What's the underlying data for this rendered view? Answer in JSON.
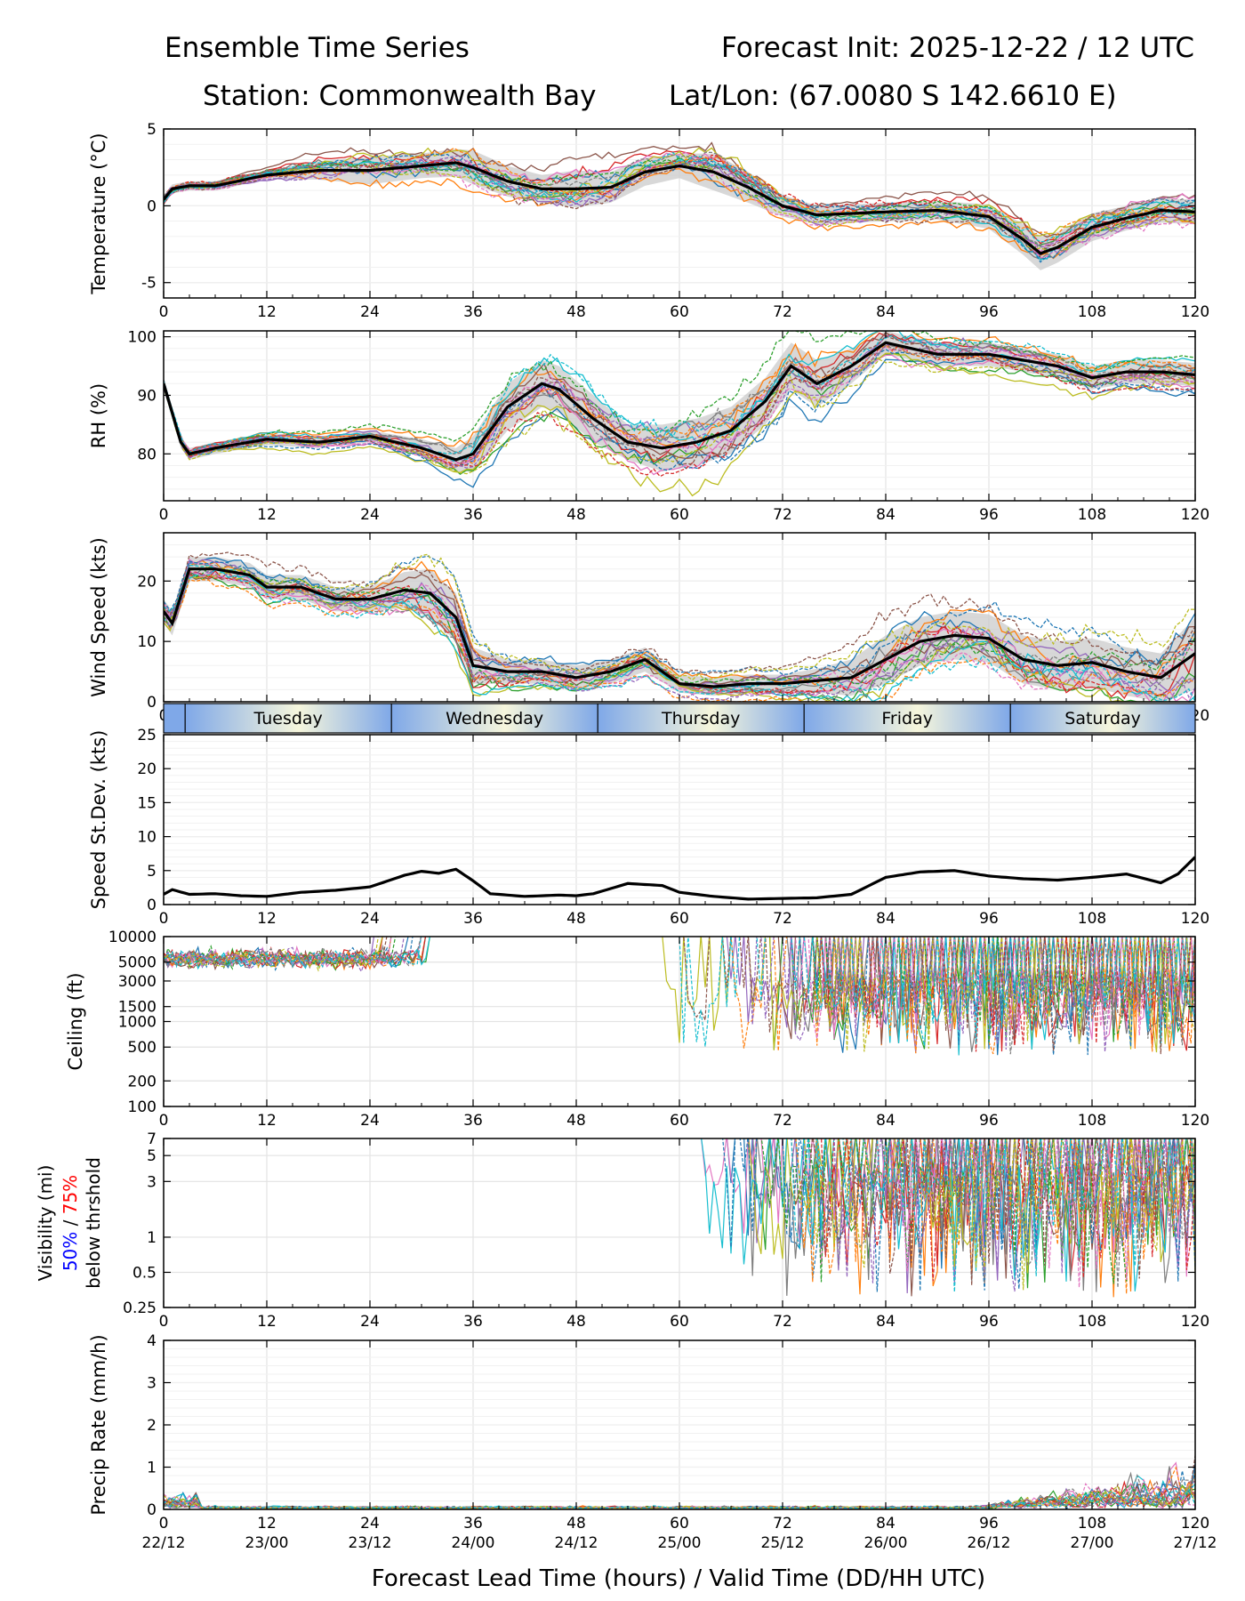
{
  "header": {
    "title_left": "Ensemble Time Series",
    "title_right": "Forecast Init: 2025-12-22 / 12 UTC",
    "station": "Station: Commonwealth Bay",
    "latlon": "Lat/Lon: (67.0080 S 142.6610 E)"
  },
  "colors": {
    "ensemble": [
      "#1f77b4",
      "#ff7f0e",
      "#2ca02c",
      "#d62728",
      "#9467bd",
      "#8c564b",
      "#e377c2",
      "#7f7f7f",
      "#bcbd22",
      "#17becf"
    ],
    "mean": "#000000",
    "spread_fill": "#c8c8c8",
    "day_band_start": "#7fa8e8",
    "day_band_end": "#f6f6dc",
    "threshold_50": "#0000ff",
    "threshold_75": "#ff0000"
  },
  "x_axis": {
    "label": "Forecast Lead Time (hours) / Valid Time (DD/HH UTC)",
    "range": [
      0,
      120
    ],
    "ticks": [
      0,
      12,
      24,
      36,
      48,
      60,
      72,
      84,
      96,
      108,
      120
    ],
    "valid_time_labels": [
      "22/12",
      "23/00",
      "23/12",
      "24/00",
      "24/12",
      "25/00",
      "25/12",
      "26/00",
      "26/12",
      "27/00",
      "27/12"
    ]
  },
  "day_band": {
    "days": [
      {
        "name": "Tuesday",
        "start": 2.5,
        "end": 26.5
      },
      {
        "name": "Wednesday",
        "start": 26.5,
        "end": 50.5
      },
      {
        "name": "Thursday",
        "start": 50.5,
        "end": 74.5
      },
      {
        "name": "Friday",
        "start": 74.5,
        "end": 98.5
      },
      {
        "name": "Saturday",
        "start": 98.5,
        "end": 122.5
      }
    ]
  },
  "chart_data": [
    {
      "type": "line",
      "id": "temperature",
      "ylabel": "Temperature (°C)",
      "ylim": [
        -6,
        5
      ],
      "yticks": [
        -5,
        0,
        5
      ],
      "scale": "linear",
      "mean": [
        [
          0,
          0.4
        ],
        [
          1,
          1.1
        ],
        [
          3,
          1.3
        ],
        [
          6,
          1.3
        ],
        [
          12,
          2.0
        ],
        [
          18,
          2.3
        ],
        [
          24,
          2.3
        ],
        [
          30,
          2.6
        ],
        [
          34,
          2.8
        ],
        [
          36,
          2.5
        ],
        [
          40,
          1.6
        ],
        [
          44,
          1.1
        ],
        [
          48,
          1.1
        ],
        [
          52,
          1.2
        ],
        [
          56,
          2.2
        ],
        [
          60,
          2.6
        ],
        [
          64,
          2.2
        ],
        [
          68,
          1.2
        ],
        [
          72,
          0.0
        ],
        [
          76,
          -0.6
        ],
        [
          80,
          -0.5
        ],
        [
          84,
          -0.4
        ],
        [
          90,
          -0.3
        ],
        [
          96,
          -0.7
        ],
        [
          100,
          -2.2
        ],
        [
          102,
          -3.1
        ],
        [
          104,
          -2.7
        ],
        [
          108,
          -1.4
        ],
        [
          112,
          -0.8
        ],
        [
          116,
          -0.3
        ],
        [
          120,
          -0.4
        ]
      ],
      "spread": [
        0.3,
        0.3,
        0.3,
        0.3,
        0.3,
        0.6,
        0.9,
        0.8,
        0.9,
        1.1,
        1.0,
        0.9,
        1.2,
        1.0,
        0.9,
        0.8,
        1.2,
        1.0,
        0.7,
        0.6,
        0.6,
        0.6,
        0.6,
        0.8,
        1.0,
        1.1,
        1.0,
        0.9,
        0.8,
        0.8,
        0.8
      ],
      "members": 20
    },
    {
      "type": "line",
      "id": "rh",
      "ylabel": "RH (%)",
      "ylim": [
        72,
        101
      ],
      "yticks": [
        80,
        90,
        100
      ],
      "scale": "linear",
      "mean": [
        [
          0,
          92
        ],
        [
          1,
          87
        ],
        [
          2,
          82
        ],
        [
          3,
          80
        ],
        [
          6,
          81
        ],
        [
          12,
          82.5
        ],
        [
          18,
          82
        ],
        [
          24,
          83
        ],
        [
          30,
          81
        ],
        [
          34,
          79
        ],
        [
          36,
          80
        ],
        [
          40,
          88
        ],
        [
          44,
          92
        ],
        [
          46,
          91
        ],
        [
          50,
          86
        ],
        [
          54,
          82
        ],
        [
          58,
          81
        ],
        [
          62,
          82
        ],
        [
          66,
          84
        ],
        [
          70,
          89
        ],
        [
          73,
          95
        ],
        [
          76,
          92
        ],
        [
          80,
          95
        ],
        [
          84,
          99
        ],
        [
          90,
          97
        ],
        [
          96,
          97
        ],
        [
          100,
          96
        ],
        [
          104,
          95
        ],
        [
          108,
          93
        ],
        [
          112,
          94
        ],
        [
          116,
          94
        ],
        [
          120,
          93.5
        ]
      ],
      "spread": [
        1,
        1,
        1,
        1,
        1,
        1,
        1,
        1,
        1.5,
        2,
        3,
        4,
        4,
        4,
        4,
        3,
        4,
        4,
        4,
        4,
        4,
        4,
        3,
        2,
        2,
        2,
        2,
        2,
        2,
        2,
        2,
        2
      ],
      "members": 20
    },
    {
      "type": "line",
      "id": "wind_speed",
      "ylabel": "Wind Speed (kts)",
      "ylim": [
        0,
        28
      ],
      "yticks": [
        0,
        10,
        20
      ],
      "scale": "linear",
      "mean": [
        [
          0,
          15
        ],
        [
          1,
          13
        ],
        [
          3,
          22
        ],
        [
          6,
          22
        ],
        [
          10,
          21
        ],
        [
          12,
          19
        ],
        [
          16,
          19
        ],
        [
          20,
          17
        ],
        [
          24,
          17
        ],
        [
          28,
          18.5
        ],
        [
          31,
          18
        ],
        [
          34,
          14
        ],
        [
          36,
          6
        ],
        [
          40,
          5
        ],
        [
          44,
          5
        ],
        [
          48,
          4
        ],
        [
          52,
          5
        ],
        [
          56,
          7
        ],
        [
          60,
          3
        ],
        [
          64,
          2.5
        ],
        [
          68,
          3
        ],
        [
          72,
          3
        ],
        [
          76,
          3.5
        ],
        [
          80,
          4
        ],
        [
          84,
          7
        ],
        [
          88,
          10
        ],
        [
          92,
          11
        ],
        [
          96,
          10.5
        ],
        [
          100,
          7
        ],
        [
          104,
          6
        ],
        [
          108,
          6.5
        ],
        [
          112,
          5
        ],
        [
          116,
          4
        ],
        [
          120,
          8
        ]
      ],
      "spread": [
        2,
        2,
        2,
        2,
        2,
        2,
        2,
        2,
        2,
        3,
        4,
        4,
        3,
        2,
        2,
        2,
        2,
        2,
        1.5,
        1.5,
        1.5,
        1.5,
        2,
        3,
        4,
        4,
        4,
        4,
        4,
        4,
        4,
        4,
        4,
        6
      ],
      "members": 20
    },
    {
      "type": "line",
      "id": "speed_stdev",
      "ylabel": "Speed St.Dev. (kts)",
      "ylim": [
        0,
        25
      ],
      "yticks": [
        0,
        5,
        10,
        15,
        20,
        25
      ],
      "scale": "linear",
      "mean": [
        [
          0,
          1.5
        ],
        [
          1,
          2.2
        ],
        [
          3,
          1.5
        ],
        [
          6,
          1.6
        ],
        [
          9,
          1.3
        ],
        [
          12,
          1.2
        ],
        [
          16,
          1.8
        ],
        [
          20,
          2.1
        ],
        [
          24,
          2.6
        ],
        [
          28,
          4.3
        ],
        [
          30,
          4.9
        ],
        [
          32,
          4.6
        ],
        [
          34,
          5.2
        ],
        [
          36,
          3.5
        ],
        [
          38,
          1.6
        ],
        [
          42,
          1.2
        ],
        [
          46,
          1.4
        ],
        [
          48,
          1.3
        ],
        [
          50,
          1.6
        ],
        [
          54,
          3.1
        ],
        [
          58,
          2.8
        ],
        [
          60,
          1.8
        ],
        [
          64,
          1.2
        ],
        [
          68,
          0.8
        ],
        [
          72,
          0.9
        ],
        [
          76,
          1.0
        ],
        [
          80,
          1.5
        ],
        [
          84,
          4.0
        ],
        [
          88,
          4.8
        ],
        [
          92,
          5.0
        ],
        [
          96,
          4.2
        ],
        [
          100,
          3.8
        ],
        [
          104,
          3.6
        ],
        [
          108,
          4.0
        ],
        [
          112,
          4.5
        ],
        [
          116,
          3.2
        ],
        [
          118,
          4.5
        ],
        [
          120,
          7.0
        ]
      ],
      "members": 0
    },
    {
      "type": "line",
      "id": "ceiling",
      "ylabel": "Ceiling (ft)",
      "ylim": [
        100,
        10000
      ],
      "yticks": [
        100,
        200,
        500,
        1000,
        1500,
        3000,
        5000,
        10000
      ],
      "scale": "log",
      "members": 20
    },
    {
      "type": "line",
      "id": "visibility",
      "ylabel": "Visibility (mi)",
      "ylabel_line2_50": "50%",
      "ylabel_line2_sep": " / ",
      "ylabel_line2_75": "75%",
      "ylabel_line3": "below thrshold",
      "ylim": [
        0.25,
        7
      ],
      "yticks": [
        0.25,
        0.5,
        1,
        3,
        5,
        7
      ],
      "scale": "log",
      "members": 20
    },
    {
      "type": "line",
      "id": "precip_rate",
      "ylabel": "Precip Rate (mm/h)",
      "ylim": [
        0,
        4
      ],
      "yticks": [
        0,
        1,
        2,
        3,
        4
      ],
      "scale": "linear",
      "members": 20
    }
  ]
}
